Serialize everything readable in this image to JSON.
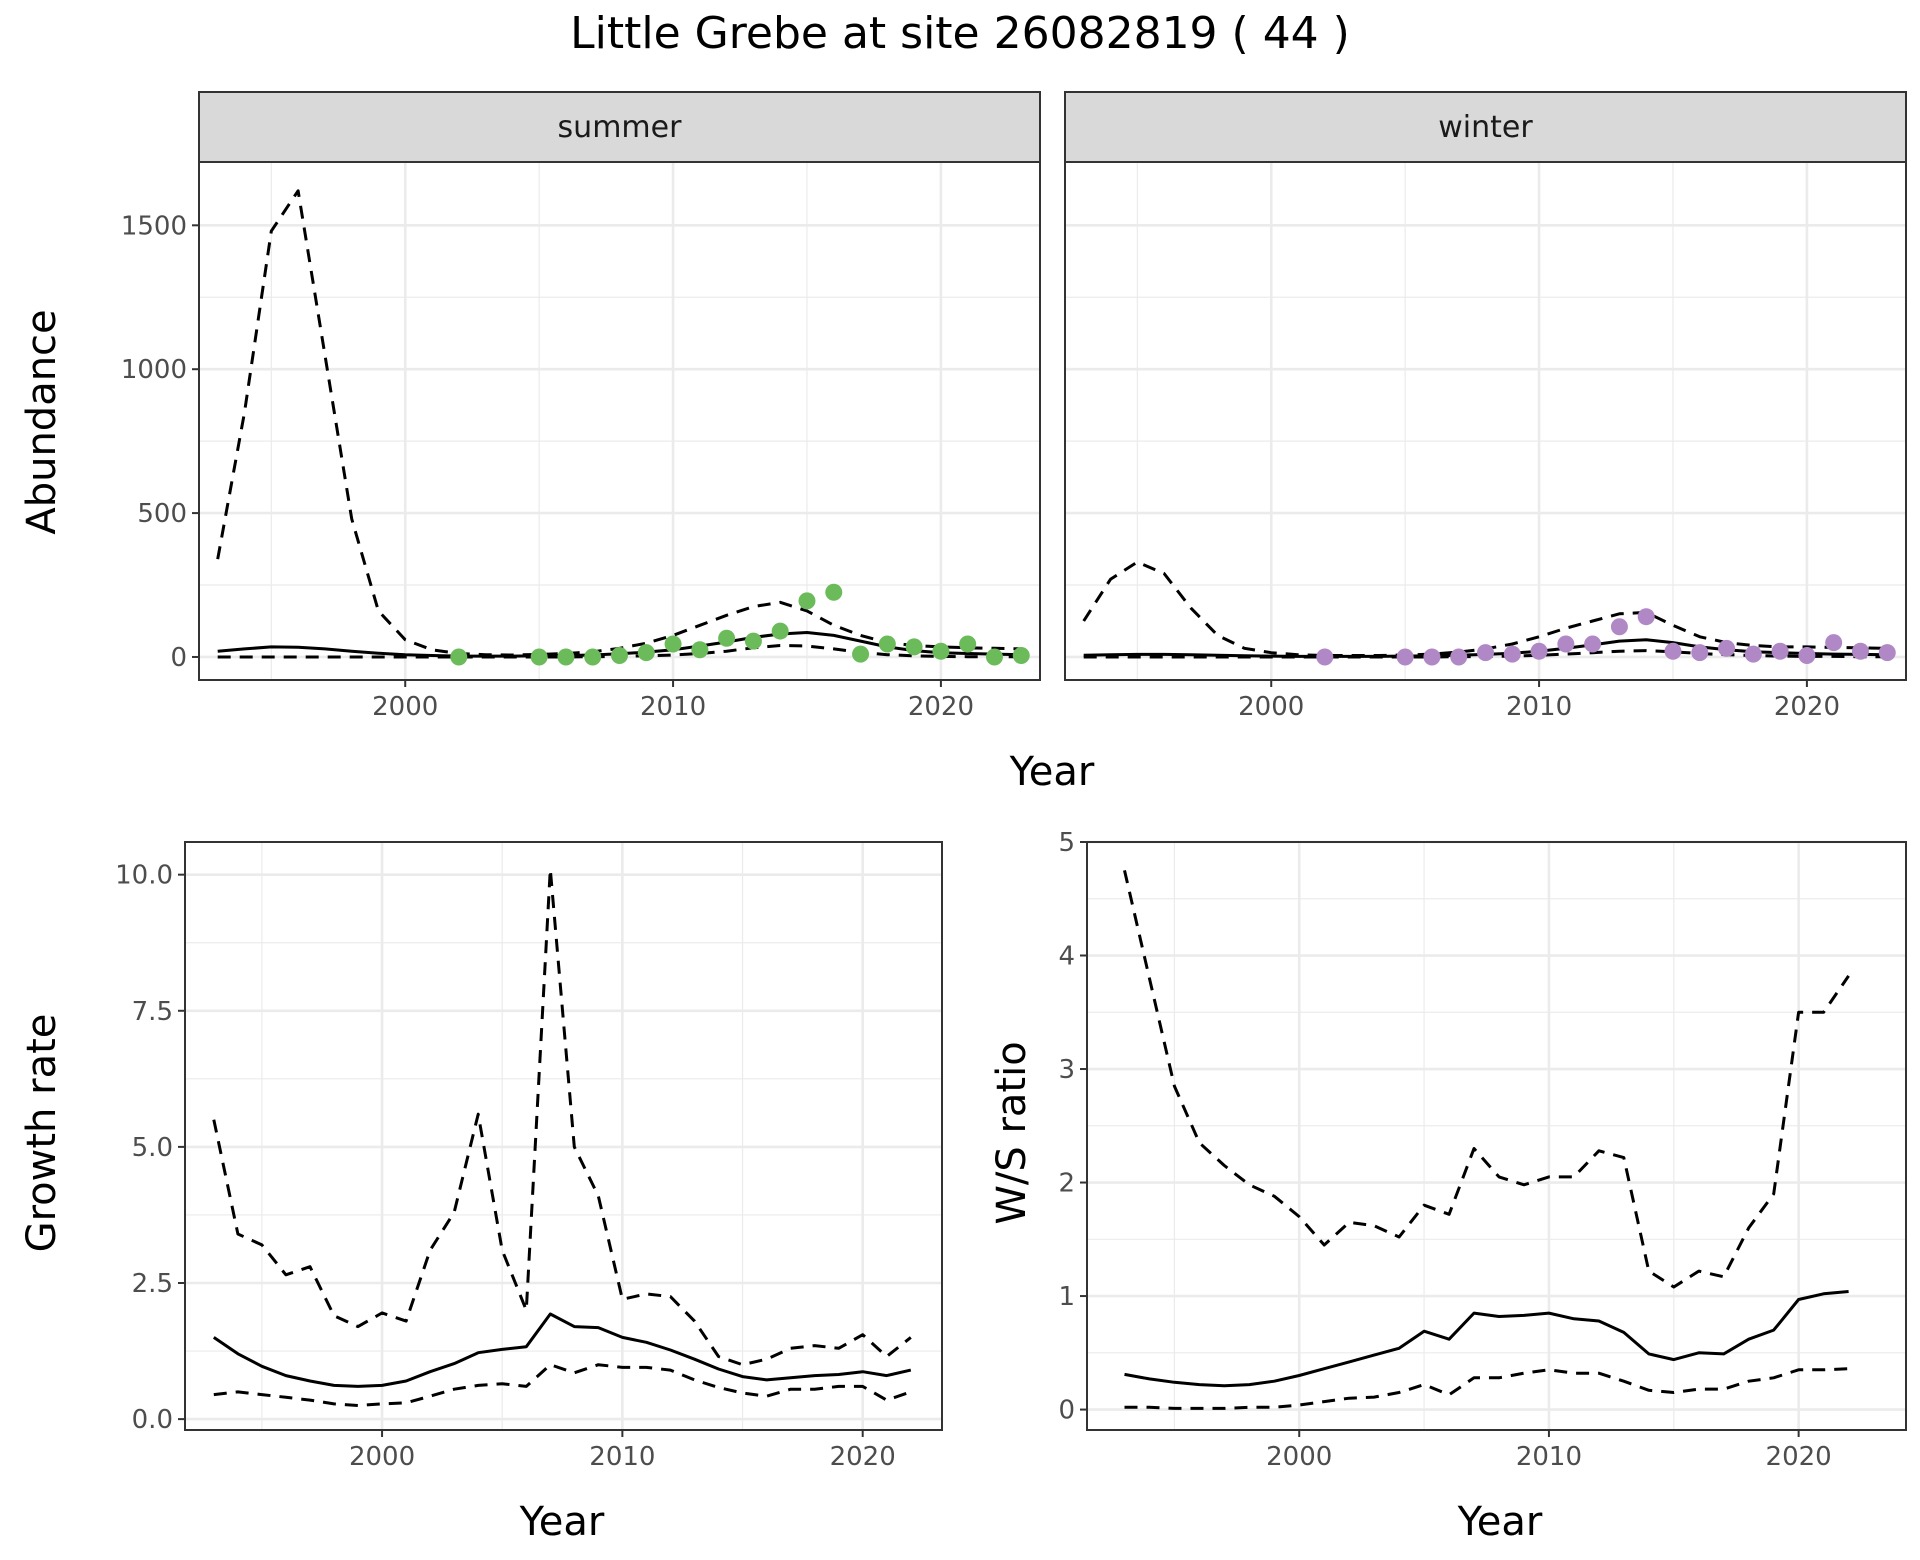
{
  "title": "Little Grebe at site 26082819 ( 44 )",
  "colors": {
    "summer_points": "#6bbb5b",
    "winter_points": "#b088c6",
    "lines": "#000000",
    "strip_fill": "#d9d9d9",
    "grid": "#ebebeb"
  },
  "chart_data": [
    {
      "type": "line",
      "facet": "summer",
      "xlabel": "Year",
      "ylabel": "Abundance",
      "xlim": [
        1992.3,
        2023.7
      ],
      "ylim": [
        -80,
        1720
      ],
      "x_ticks": [
        2000,
        2010,
        2020
      ],
      "x_tick_labels": [
        "2000",
        "2010",
        "2020"
      ],
      "y_ticks": [
        0,
        500,
        1000,
        1500
      ],
      "y_tick_labels": [
        "0",
        "500",
        "1000",
        "1500"
      ],
      "grid": true,
      "series": [
        {
          "style": "solid",
          "x": [
            1993,
            1994,
            1995,
            1996,
            1997,
            1998,
            1999,
            2000,
            2001,
            2002,
            2003,
            2004,
            2005,
            2006,
            2007,
            2008,
            2009,
            2010,
            2011,
            2012,
            2013,
            2014,
            2015,
            2016,
            2017,
            2018,
            2019,
            2020,
            2021,
            2022,
            2023
          ],
          "values": [
            20,
            28,
            35,
            34,
            28,
            20,
            13,
            8,
            5,
            3,
            3,
            3,
            4,
            5,
            7,
            11,
            17,
            25,
            38,
            52,
            68,
            80,
            85,
            75,
            55,
            35,
            22,
            15,
            12,
            10,
            8
          ]
        },
        {
          "style": "dashed",
          "x": [
            1993,
            1994,
            1995,
            1996,
            1997,
            1998,
            1999,
            2000,
            2001,
            2002,
            2003,
            2004,
            2005,
            2006,
            2007,
            2008,
            2009,
            2010,
            2011,
            2012,
            2013,
            2014,
            2015,
            2016,
            2017,
            2018,
            2019,
            2020,
            2021,
            2022,
            2023
          ],
          "values": [
            340,
            850,
            1480,
            1620,
            1050,
            480,
            160,
            60,
            25,
            12,
            8,
            7,
            9,
            12,
            18,
            30,
            48,
            75,
            110,
            145,
            175,
            190,
            160,
            110,
            75,
            50,
            40,
            35,
            32,
            30,
            28
          ]
        },
        {
          "style": "dashed",
          "x": [
            1993,
            1994,
            1995,
            1996,
            1997,
            1998,
            1999,
            2000,
            2001,
            2002,
            2003,
            2004,
            2005,
            2006,
            2007,
            2008,
            2009,
            2010,
            2011,
            2012,
            2013,
            2014,
            2015,
            2016,
            2017,
            2018,
            2019,
            2020,
            2021,
            2022,
            2023
          ],
          "values": [
            0,
            0,
            0,
            0,
            0,
            0,
            0,
            0,
            0,
            0,
            0,
            0,
            0,
            0,
            1,
            2,
            4,
            7,
            12,
            20,
            32,
            40,
            38,
            28,
            16,
            8,
            4,
            2,
            1,
            1,
            1
          ]
        },
        {
          "style": "points",
          "x": [
            2002,
            2005,
            2006,
            2007,
            2008,
            2009,
            2010,
            2011,
            2012,
            2013,
            2014,
            2015,
            2016,
            2017,
            2018,
            2019,
            2020,
            2021,
            2022,
            2023
          ],
          "values": [
            0,
            0,
            0,
            0,
            5,
            15,
            45,
            25,
            65,
            55,
            90,
            195,
            225,
            10,
            45,
            35,
            20,
            45,
            0,
            5
          ]
        }
      ]
    },
    {
      "type": "line",
      "facet": "winter",
      "xlabel": "Year",
      "ylabel": "Abundance",
      "xlim": [
        1992.3,
        2023.7
      ],
      "ylim": [
        -80,
        1720
      ],
      "x_ticks": [
        2000,
        2010,
        2020
      ],
      "x_tick_labels": [
        "2000",
        "2010",
        "2020"
      ],
      "y_ticks": [
        0,
        500,
        1000,
        1500
      ],
      "grid": true,
      "series": [
        {
          "style": "solid",
          "x": [
            1993,
            1994,
            1995,
            1996,
            1997,
            1998,
            1999,
            2000,
            2001,
            2002,
            2003,
            2004,
            2005,
            2006,
            2007,
            2008,
            2009,
            2010,
            2011,
            2012,
            2013,
            2014,
            2015,
            2016,
            2017,
            2018,
            2019,
            2020,
            2021,
            2022,
            2023
          ],
          "values": [
            6,
            8,
            9,
            9,
            8,
            6,
            4,
            3,
            2,
            2,
            2,
            2,
            3,
            4,
            6,
            9,
            13,
            20,
            30,
            42,
            55,
            60,
            50,
            35,
            25,
            18,
            15,
            12,
            10,
            9,
            8
          ]
        },
        {
          "style": "dashed",
          "x": [
            1993,
            1994,
            1995,
            1996,
            1997,
            1998,
            1999,
            2000,
            2001,
            2002,
            2003,
            2004,
            2005,
            2006,
            2007,
            2008,
            2009,
            2010,
            2011,
            2012,
            2013,
            2014,
            2015,
            2016,
            2017,
            2018,
            2019,
            2020,
            2021,
            2022,
            2023
          ],
          "values": [
            125,
            270,
            330,
            290,
            170,
            75,
            30,
            15,
            8,
            5,
            5,
            5,
            7,
            10,
            17,
            28,
            45,
            70,
            100,
            125,
            150,
            155,
            110,
            70,
            50,
            40,
            35,
            35,
            33,
            32,
            30
          ]
        },
        {
          "style": "dashed",
          "x": [
            1993,
            1994,
            1995,
            1996,
            1997,
            1998,
            1999,
            2000,
            2001,
            2002,
            2003,
            2004,
            2005,
            2006,
            2007,
            2008,
            2009,
            2010,
            2011,
            2012,
            2013,
            2014,
            2015,
            2016,
            2017,
            2018,
            2019,
            2020,
            2021,
            2022,
            2023
          ],
          "values": [
            0,
            0,
            0,
            0,
            0,
            0,
            0,
            0,
            0,
            0,
            0,
            0,
            0,
            0,
            1,
            2,
            3,
            6,
            10,
            15,
            20,
            22,
            18,
            12,
            8,
            5,
            3,
            2,
            2,
            1,
            1
          ]
        },
        {
          "style": "points",
          "x": [
            2002,
            2005,
            2006,
            2007,
            2008,
            2009,
            2010,
            2011,
            2012,
            2013,
            2014,
            2015,
            2016,
            2017,
            2018,
            2019,
            2020,
            2021,
            2022,
            2023
          ],
          "values": [
            0,
            0,
            0,
            0,
            15,
            10,
            20,
            45,
            45,
            105,
            140,
            20,
            15,
            30,
            10,
            20,
            5,
            50,
            20,
            15
          ]
        }
      ]
    },
    {
      "type": "line",
      "xlabel": "Year",
      "ylabel": "Growth rate",
      "xlim": [
        1991.8,
        2023.3
      ],
      "ylim": [
        -0.2,
        10.6
      ],
      "x_ticks": [
        2000,
        2010,
        2020
      ],
      "x_tick_labels": [
        "2000",
        "2010",
        "2020"
      ],
      "y_ticks": [
        0,
        2.5,
        5,
        7.5,
        10
      ],
      "y_tick_labels": [
        "0.0",
        "2.5",
        "5.0",
        "7.5",
        "10.0"
      ],
      "grid": true,
      "series": [
        {
          "style": "solid",
          "x": [
            1993,
            1994,
            1995,
            1996,
            1997,
            1998,
            1999,
            2000,
            2001,
            2002,
            2003,
            2004,
            2005,
            2006,
            2007,
            2008,
            2009,
            2010,
            2011,
            2012,
            2013,
            2014,
            2015,
            2016,
            2017,
            2018,
            2019,
            2020,
            2021,
            2022
          ],
          "values": [
            1.5,
            1.2,
            0.97,
            0.8,
            0.7,
            0.62,
            0.6,
            0.62,
            0.7,
            0.87,
            1.02,
            1.22,
            1.28,
            1.33,
            1.93,
            1.7,
            1.68,
            1.5,
            1.41,
            1.27,
            1.1,
            0.92,
            0.78,
            0.72,
            0.76,
            0.8,
            0.82,
            0.87,
            0.8,
            0.9
          ]
        },
        {
          "style": "dashed",
          "x": [
            1993,
            1994,
            1995,
            1996,
            1997,
            1998,
            1999,
            2000,
            2001,
            2002,
            2003,
            2004,
            2005,
            2006,
            2007,
            2008,
            2009,
            2010,
            2011,
            2012,
            2013,
            2014,
            2015,
            2016,
            2017,
            2018,
            2019,
            2020,
            2021,
            2022
          ],
          "values": [
            5.5,
            3.4,
            3.2,
            2.65,
            2.8,
            1.9,
            1.7,
            1.95,
            1.8,
            3.1,
            3.8,
            5.6,
            3.1,
            2.0,
            10.1,
            5.0,
            4.1,
            2.2,
            2.3,
            2.25,
            1.8,
            1.15,
            1.0,
            1.1,
            1.3,
            1.35,
            1.3,
            1.55,
            1.15,
            1.5
          ]
        },
        {
          "style": "dashed",
          "x": [
            1993,
            1994,
            1995,
            1996,
            1997,
            1998,
            1999,
            2000,
            2001,
            2002,
            2003,
            2004,
            2005,
            2006,
            2007,
            2008,
            2009,
            2010,
            2011,
            2012,
            2013,
            2014,
            2015,
            2016,
            2017,
            2018,
            2019,
            2020,
            2021,
            2022
          ],
          "values": [
            0.45,
            0.5,
            0.45,
            0.4,
            0.35,
            0.28,
            0.25,
            0.28,
            0.3,
            0.42,
            0.55,
            0.62,
            0.65,
            0.6,
            1.0,
            0.85,
            1.0,
            0.95,
            0.95,
            0.9,
            0.72,
            0.58,
            0.48,
            0.42,
            0.55,
            0.55,
            0.6,
            0.6,
            0.35,
            0.5
          ]
        }
      ]
    },
    {
      "type": "line",
      "xlabel": "Year",
      "ylabel": "W/S ratio",
      "xlim": [
        1991.5,
        2024.3
      ],
      "ylim": [
        -0.18,
        5.0
      ],
      "x_ticks": [
        2000,
        2010,
        2020
      ],
      "x_tick_labels": [
        "2000",
        "2010",
        "2020"
      ],
      "y_ticks": [
        0,
        1,
        2,
        3,
        4,
        5
      ],
      "y_tick_labels": [
        "0",
        "1",
        "2",
        "3",
        "4",
        "5"
      ],
      "grid": true,
      "series": [
        {
          "style": "solid",
          "x": [
            1993,
            1994,
            1995,
            1996,
            1997,
            1998,
            1999,
            2000,
            2001,
            2002,
            2003,
            2004,
            2005,
            2006,
            2007,
            2008,
            2009,
            2010,
            2011,
            2012,
            2013,
            2014,
            2015,
            2016,
            2017,
            2018,
            2019,
            2020,
            2021,
            2022
          ],
          "values": [
            0.31,
            0.27,
            0.24,
            0.22,
            0.21,
            0.22,
            0.25,
            0.3,
            0.36,
            0.42,
            0.48,
            0.54,
            0.69,
            0.62,
            0.85,
            0.82,
            0.83,
            0.85,
            0.8,
            0.78,
            0.68,
            0.49,
            0.44,
            0.5,
            0.49,
            0.62,
            0.7,
            0.97,
            1.02,
            1.04
          ]
        },
        {
          "style": "dashed",
          "x": [
            1993,
            1994,
            1995,
            1996,
            1997,
            1998,
            1999,
            2000,
            2001,
            2002,
            2003,
            2004,
            2005,
            2006,
            2007,
            2008,
            2009,
            2010,
            2011,
            2012,
            2013,
            2014,
            2015,
            2016,
            2017,
            2018,
            2019,
            2020,
            2021,
            2022
          ],
          "values": [
            4.75,
            3.8,
            2.85,
            2.35,
            2.15,
            1.98,
            1.88,
            1.7,
            1.45,
            1.65,
            1.62,
            1.52,
            1.8,
            1.72,
            2.3,
            2.05,
            1.98,
            2.05,
            2.05,
            2.28,
            2.22,
            1.22,
            1.08,
            1.22,
            1.17,
            1.6,
            1.9,
            3.5,
            3.5,
            3.82
          ]
        },
        {
          "style": "dashed",
          "x": [
            1993,
            1994,
            1995,
            1996,
            1997,
            1998,
            1999,
            2000,
            2001,
            2002,
            2003,
            2004,
            2005,
            2006,
            2007,
            2008,
            2009,
            2010,
            2011,
            2012,
            2013,
            2014,
            2015,
            2016,
            2017,
            2018,
            2019,
            2020,
            2021,
            2022
          ],
          "values": [
            0.02,
            0.02,
            0.01,
            0.01,
            0.01,
            0.02,
            0.02,
            0.04,
            0.07,
            0.1,
            0.11,
            0.15,
            0.22,
            0.13,
            0.28,
            0.28,
            0.32,
            0.35,
            0.32,
            0.32,
            0.25,
            0.17,
            0.15,
            0.18,
            0.18,
            0.25,
            0.28,
            0.35,
            0.35,
            0.36
          ]
        }
      ]
    }
  ]
}
